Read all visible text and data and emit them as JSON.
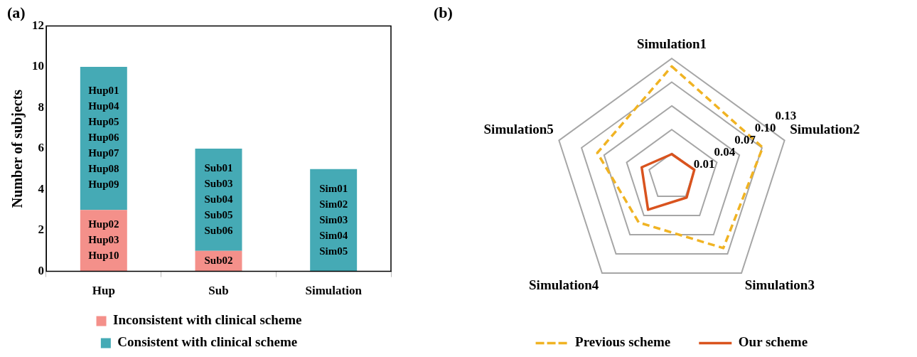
{
  "chart_data": [
    {
      "type": "bar",
      "title": "(a)",
      "categories": [
        "Hup",
        "Sub",
        "Simulation"
      ],
      "ylabel": "Number of subjects",
      "stacked": true,
      "series": [
        {
          "name": "Inconsistent with clinical scheme",
          "color": "#f4908a",
          "values": [
            3,
            1,
            0
          ],
          "value_labels": [
            "Hup02\nHup03\nHup10",
            "Sub02",
            null
          ]
        },
        {
          "name": "Consistent with clinical scheme",
          "color": "#45aab5",
          "values": [
            7,
            5,
            5
          ],
          "value_labels": [
            "Hup01\nHup04\nHup05\nHup06\nHup07\nHup08\nHup09",
            "Sub01\nSub03\nSub04\nSub05\nSub06",
            "Sim01\nSim02\nSim03\nSim04\nSim05"
          ]
        }
      ],
      "ylim": [
        0,
        12
      ],
      "yticks": [
        0,
        2,
        4,
        6,
        8,
        10,
        12
      ],
      "grid": false,
      "legend": "bottom"
    },
    {
      "type": "radar",
      "title": "(b)",
      "categories": [
        "Simulation1",
        "Simulation2",
        "Simulation3",
        "Simulation4",
        "Simulation5"
      ],
      "series": [
        {
          "name": "Previous scheme",
          "color": "#f0b323",
          "line_style": "dashed",
          "values": [
            0.12,
            0.101,
            0.091,
            0.051,
            0.079
          ]
        },
        {
          "name": "Our scheme",
          "color": "#d9531e",
          "line_style": "solid",
          "values": [
            0.009,
            0.01,
            0.012,
            0.031,
            0.02
          ]
        }
      ],
      "ylim": [
        -0.02,
        0.13
      ],
      "yticks": [
        0.01,
        0.04,
        0.07,
        {
          "value": 0.1,
          "label": "0.10"
        },
        0.13
      ],
      "grid": true,
      "legend": "bottom",
      "marker": "none"
    }
  ]
}
